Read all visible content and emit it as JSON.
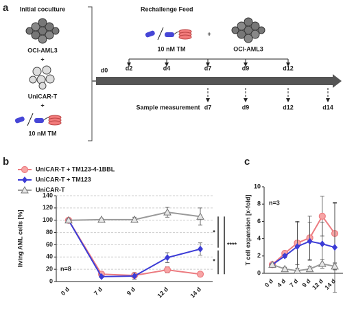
{
  "diagram": {
    "panel_label": "a",
    "left": {
      "title": "Initial coculture",
      "items": [
        "OCI-AML3",
        "+",
        "UniCAR-T",
        "+",
        "10 nM TM"
      ]
    },
    "right": {
      "title": "Rechallenge Feed",
      "feed": [
        "10 nM TM",
        "+",
        "OCI-AML3"
      ],
      "start": "d0",
      "feed_days": [
        "d2",
        "d4",
        "d7",
        "d9",
        "d12"
      ],
      "sample_label": "Sample measurement",
      "sample_days": [
        "d7",
        "d9",
        "d12",
        "d14"
      ]
    }
  },
  "chart_data": [
    {
      "type": "line",
      "panel_label": "b",
      "y_label": "living AML cells [%]",
      "annotation": "n=8",
      "significance": [
        "*",
        "*",
        "****"
      ],
      "categories": [
        "0 d",
        "7 d",
        "9 d",
        "12 d",
        "14 d"
      ],
      "ylim": [
        0,
        140
      ],
      "yticks": [
        0,
        20,
        40,
        60,
        80,
        100,
        120,
        140
      ],
      "grid": true,
      "legend": "top-left",
      "series": [
        {
          "name": "UniCAR-T + TM123-4-1BBL",
          "color": "#ec7b80",
          "marker": "circle",
          "values": [
            100,
            12,
            10,
            19,
            12
          ],
          "errors": [
            2,
            3,
            3,
            5,
            4
          ]
        },
        {
          "name": "UniCAR-T + TM123",
          "color": "#3c3cd6",
          "marker": "diamond",
          "values": [
            100,
            8,
            9,
            39,
            53
          ],
          "errors": [
            2,
            2,
            5,
            8,
            10
          ]
        },
        {
          "name": "UniCAR-T",
          "color": "#9a9a9a",
          "marker": "triangle",
          "values": [
            100,
            101,
            101,
            113,
            106
          ],
          "errors": [
            2,
            2,
            4,
            8,
            14
          ]
        }
      ]
    },
    {
      "type": "line",
      "panel_label": "c",
      "y_label": "T cell expansion [x-fold]",
      "annotation": "n=3",
      "categories": [
        "0 d",
        "4 d",
        "7 d",
        "9 d",
        "12 d",
        "14 d"
      ],
      "ylim": [
        0,
        10
      ],
      "yticks": [
        0,
        2,
        4,
        6,
        8,
        10
      ],
      "grid": false,
      "series": [
        {
          "color": "#ec7b80",
          "marker": "circle",
          "values": [
            1,
            2.3,
            3.5,
            4.1,
            6.6,
            4.6
          ],
          "errors": [
            0.1,
            0.3,
            2.5,
            2.5,
            2.3,
            3.5
          ]
        },
        {
          "color": "#3c3cd6",
          "marker": "diamond",
          "values": [
            1,
            2.0,
            3.1,
            3.7,
            3.4,
            3.0
          ],
          "errors": [
            0.1,
            0.2,
            2.8,
            2.2,
            2.5,
            5.2
          ]
        },
        {
          "color": "#9a9a9a",
          "marker": "triangle",
          "values": [
            1,
            0.5,
            0.3,
            0.5,
            1.1,
            0.8
          ],
          "errors": [
            0.1,
            0.2,
            0.3,
            0.3,
            0.5,
            0.4
          ]
        }
      ]
    }
  ]
}
